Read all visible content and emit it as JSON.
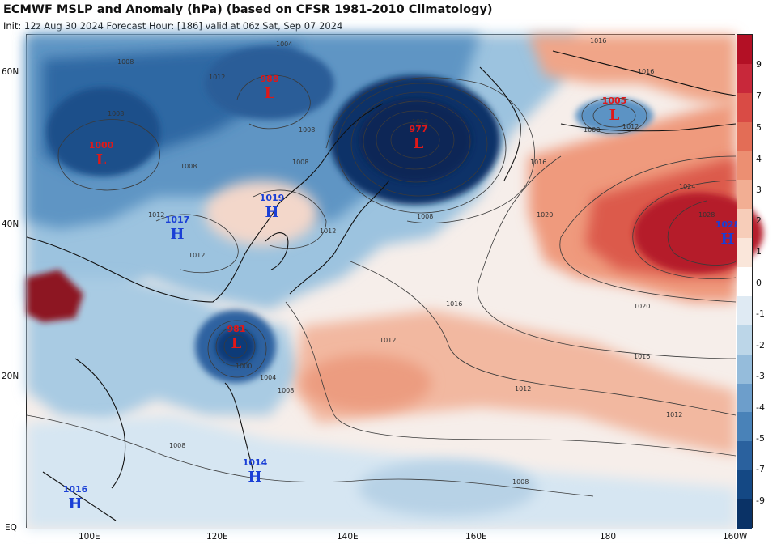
{
  "title": "ECMWF MSLP and Anomaly (hPa) (based on CFSR 1981-2010 Climatology)",
  "subtitle": "Init: 12z Aug 30 2024   Forecast Hour: [186]   valid at 06z Sat, Sep 07 2024",
  "axes": {
    "lon_labels": [
      "100E",
      "120E",
      "140E",
      "160E",
      "180",
      "160W"
    ],
    "lat_labels": [
      "60N",
      "40N",
      "20N",
      "EQ"
    ]
  },
  "colorbar": {
    "labels": [
      "9",
      "7",
      "5",
      "4",
      "3",
      "2",
      "1",
      "0",
      "-1",
      "-2",
      "-3",
      "-4",
      "-5",
      "-7",
      "-9"
    ],
    "colors": [
      "#b31025",
      "#c8283a",
      "#d94b45",
      "#e36d56",
      "#ec8f72",
      "#f2ae93",
      "#f7cdb9",
      "#fae6da",
      "#ffffff",
      "#dfeaf3",
      "#bcd6e8",
      "#95bcdb",
      "#6d9ecb",
      "#4982b8",
      "#2a619e",
      "#144884",
      "#0a3266"
    ]
  },
  "pressure_centers": [
    {
      "type": "L",
      "value": "1000",
      "color": "#e01818"
    },
    {
      "type": "L",
      "value": "988",
      "color": "#e01818"
    },
    {
      "type": "L",
      "value": "977",
      "color": "#e01818"
    },
    {
      "type": "L",
      "value": "1005",
      "color": "#e01818"
    },
    {
      "type": "H",
      "value": "1017",
      "color": "#1a3fd6"
    },
    {
      "type": "H",
      "value": "1019",
      "color": "#1a3fd6"
    },
    {
      "type": "H",
      "value": "1028",
      "color": "#1a3fd6"
    },
    {
      "type": "L",
      "value": "981",
      "color": "#e01818"
    },
    {
      "type": "H",
      "value": "1014",
      "color": "#1a3fd6"
    },
    {
      "type": "H",
      "value": "1016",
      "color": "#1a3fd6"
    }
  ],
  "contour_labels": [
    "1008",
    "1004",
    "1008",
    "1012",
    "1012",
    "1012",
    "1016",
    "1020",
    "1024",
    "1028",
    "1020",
    "1016",
    "1012",
    "1012",
    "1016",
    "1012",
    "1008",
    "1004",
    "1000",
    "1008",
    "1008",
    "1012",
    "1008",
    "1008",
    "1008",
    "1012",
    "1016",
    "1016",
    "1008",
    "1012",
    "1008"
  ]
}
